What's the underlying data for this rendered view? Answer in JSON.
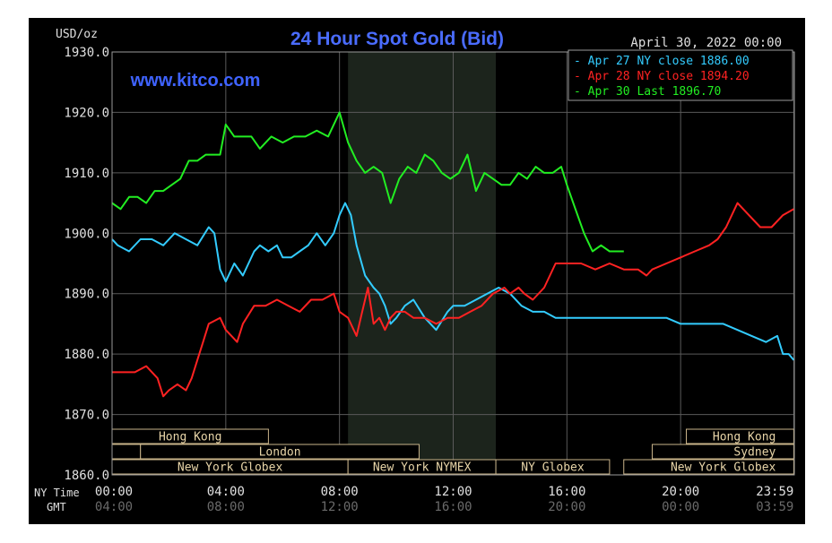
{
  "chart_data": {
    "type": "line",
    "title": "24 Hour Spot Gold (Bid)",
    "watermark": "www.kitco.com",
    "date_label": "April 30, 2022 00:00",
    "ylabel": "USD/oz",
    "ylim": [
      1860,
      1930
    ],
    "yticks": [
      "1930.0",
      "1920.0",
      "1910.0",
      "1900.0",
      "1890.0",
      "1880.0",
      "1870.0",
      "1860.0"
    ],
    "ytick_values": [
      1930,
      1920,
      1910,
      1900,
      1890,
      1880,
      1870,
      1860
    ],
    "xlim": [
      0,
      24
    ],
    "x_row_label_ny": "NY Time",
    "x_row_label_gmt": "GMT",
    "xticks_ny": [
      "00:00",
      "04:00",
      "08:00",
      "12:00",
      "16:00",
      "20:00",
      "23:59"
    ],
    "xticks_gmt": [
      "04:00",
      "08:00",
      "12:00",
      "16:00",
      "20:00",
      "00:00",
      "03:59"
    ],
    "xtick_values": [
      0,
      4,
      8,
      12,
      16,
      20,
      23.98
    ],
    "grid": true,
    "shaded_session": [
      8.3,
      13.5
    ],
    "legend_position": "top-right",
    "series": [
      {
        "name": "Apr 27 NY close 1886.00",
        "color": "#33ccff",
        "x": [
          0,
          0.2,
          0.6,
          1.0,
          1.4,
          1.8,
          2.2,
          2.6,
          3.0,
          3.4,
          3.6,
          3.8,
          4.0,
          4.3,
          4.6,
          4.8,
          5.0,
          5.2,
          5.5,
          5.8,
          6.0,
          6.3,
          6.6,
          6.9,
          7.2,
          7.5,
          7.8,
          8.0,
          8.2,
          8.4,
          8.6,
          8.9,
          9.2,
          9.4,
          9.6,
          9.8,
          10.0,
          10.3,
          10.6,
          11.0,
          11.4,
          11.8,
          12.0,
          12.4,
          12.8,
          13.2,
          13.6,
          14.0,
          14.4,
          14.8,
          15.2,
          15.6,
          16.0,
          16.5,
          17.0,
          17.5,
          18.0,
          18.5,
          19.0,
          19.5,
          20.0,
          20.5,
          21.0,
          21.5,
          22.0,
          22.5,
          23.0,
          23.4,
          23.6,
          23.8,
          23.98
        ],
        "y": [
          1899,
          1898,
          1897,
          1899,
          1899,
          1898,
          1900,
          1899,
          1898,
          1901,
          1900,
          1894,
          1892,
          1895,
          1893,
          1895,
          1897,
          1898,
          1897,
          1898,
          1896,
          1896,
          1897,
          1898,
          1900,
          1898,
          1900,
          1903,
          1905,
          1903,
          1898,
          1893,
          1891,
          1890,
          1888,
          1885,
          1886,
          1888,
          1889,
          1886,
          1884,
          1887,
          1888,
          1888,
          1889,
          1890,
          1891,
          1890,
          1888,
          1887,
          1887,
          1886,
          1886,
          1886,
          1886,
          1886,
          1886,
          1886,
          1886,
          1886,
          1885,
          1885,
          1885,
          1885,
          1884,
          1883,
          1882,
          1883,
          1880,
          1880,
          1879
        ],
        "label_name": "Apr 27 NY close",
        "label_value": "1886.00"
      },
      {
        "name": "Apr 28 NY close 1894.20",
        "color": "#ff2222",
        "x": [
          0,
          0.4,
          0.8,
          1.2,
          1.6,
          1.8,
          2.0,
          2.3,
          2.6,
          2.8,
          3.0,
          3.2,
          3.4,
          3.8,
          4.0,
          4.2,
          4.4,
          4.6,
          5.0,
          5.4,
          5.8,
          6.2,
          6.6,
          7.0,
          7.4,
          7.8,
          8.0,
          8.3,
          8.6,
          8.8,
          9.0,
          9.2,
          9.4,
          9.6,
          9.8,
          10.0,
          10.3,
          10.6,
          11.0,
          11.4,
          11.8,
          12.2,
          12.6,
          13.0,
          13.4,
          13.8,
          14.0,
          14.3,
          14.5,
          14.8,
          15.2,
          15.6,
          16.0,
          16.5,
          17.0,
          17.5,
          18.0,
          18.5,
          18.8,
          19.0,
          19.5,
          20.0,
          20.5,
          21.0,
          21.3,
          21.6,
          22.0,
          22.4,
          22.8,
          23.2,
          23.6,
          23.98
        ],
        "y": [
          1877,
          1877,
          1877,
          1878,
          1876,
          1873,
          1874,
          1875,
          1874,
          1876,
          1879,
          1882,
          1885,
          1886,
          1884,
          1883,
          1882,
          1885,
          1888,
          1888,
          1889,
          1888,
          1887,
          1889,
          1889,
          1890,
          1887,
          1886,
          1883,
          1887,
          1891,
          1885,
          1886,
          1884,
          1886,
          1887,
          1887,
          1886,
          1886,
          1885,
          1886,
          1886,
          1887,
          1888,
          1890,
          1891,
          1890,
          1891,
          1890,
          1889,
          1891,
          1895,
          1895,
          1895,
          1894,
          1895,
          1894,
          1894,
          1893,
          1894,
          1895,
          1896,
          1897,
          1898,
          1899,
          1901,
          1905,
          1903,
          1901,
          1901,
          1903,
          1904
        ],
        "label_name": "Apr 28 NY close",
        "label_value": "1894.20"
      },
      {
        "name": "Apr 30 Last 1896.70",
        "color": "#22ee22",
        "x": [
          0,
          0.3,
          0.6,
          0.9,
          1.2,
          1.5,
          1.8,
          2.1,
          2.4,
          2.7,
          3.0,
          3.3,
          3.6,
          3.8,
          4.0,
          4.3,
          4.6,
          4.9,
          5.2,
          5.6,
          6.0,
          6.4,
          6.8,
          7.2,
          7.6,
          8.0,
          8.3,
          8.6,
          8.9,
          9.2,
          9.5,
          9.8,
          10.1,
          10.4,
          10.7,
          11.0,
          11.3,
          11.6,
          11.9,
          12.2,
          12.5,
          12.8,
          13.1,
          13.4,
          13.7,
          14.0,
          14.3,
          14.6,
          14.9,
          15.2,
          15.5,
          15.8,
          16.0,
          16.3,
          16.6,
          16.9,
          17.2,
          17.5,
          18.0
        ],
        "y": [
          1905,
          1904,
          1906,
          1906,
          1905,
          1907,
          1907,
          1908,
          1909,
          1912,
          1912,
          1913,
          1913,
          1913,
          1918,
          1916,
          1916,
          1916,
          1914,
          1916,
          1915,
          1916,
          1916,
          1917,
          1916,
          1920,
          1915,
          1912,
          1910,
          1911,
          1910,
          1905,
          1909,
          1911,
          1910,
          1913,
          1912,
          1910,
          1909,
          1910,
          1913,
          1907,
          1910,
          1909,
          1908,
          1908,
          1910,
          1909,
          1911,
          1910,
          1910,
          1911,
          1908,
          1904,
          1900,
          1897,
          1898,
          1897,
          1897
        ],
        "label_name": "Apr 30 Last",
        "label_value": "1896.70"
      }
    ],
    "sessions_row1": [
      {
        "label": "Hong Kong",
        "start": 0,
        "end": 5.5,
        "side": "left"
      },
      {
        "label": "Hong Kong",
        "start": 20.2,
        "end": 23.98,
        "side": "right"
      }
    ],
    "sessions_row2": [
      {
        "label": "",
        "start": 0,
        "end": 1.0,
        "side": "left"
      },
      {
        "label": "London",
        "start": 1.0,
        "end": 10.8,
        "side": "left"
      },
      {
        "label": "Sydney",
        "start": 19.0,
        "end": 23.98,
        "side": "right"
      }
    ],
    "sessions_row3": [
      {
        "label": "New York Globex",
        "start": 0,
        "end": 8.3,
        "side": "left"
      },
      {
        "label": "New York NYMEX",
        "start": 8.3,
        "end": 13.5,
        "side": "left"
      },
      {
        "label": "NY Globex",
        "start": 13.5,
        "end": 17.5,
        "side": "left"
      },
      {
        "label": "New York Globex",
        "start": 18.0,
        "end": 23.98,
        "side": "right"
      }
    ]
  }
}
